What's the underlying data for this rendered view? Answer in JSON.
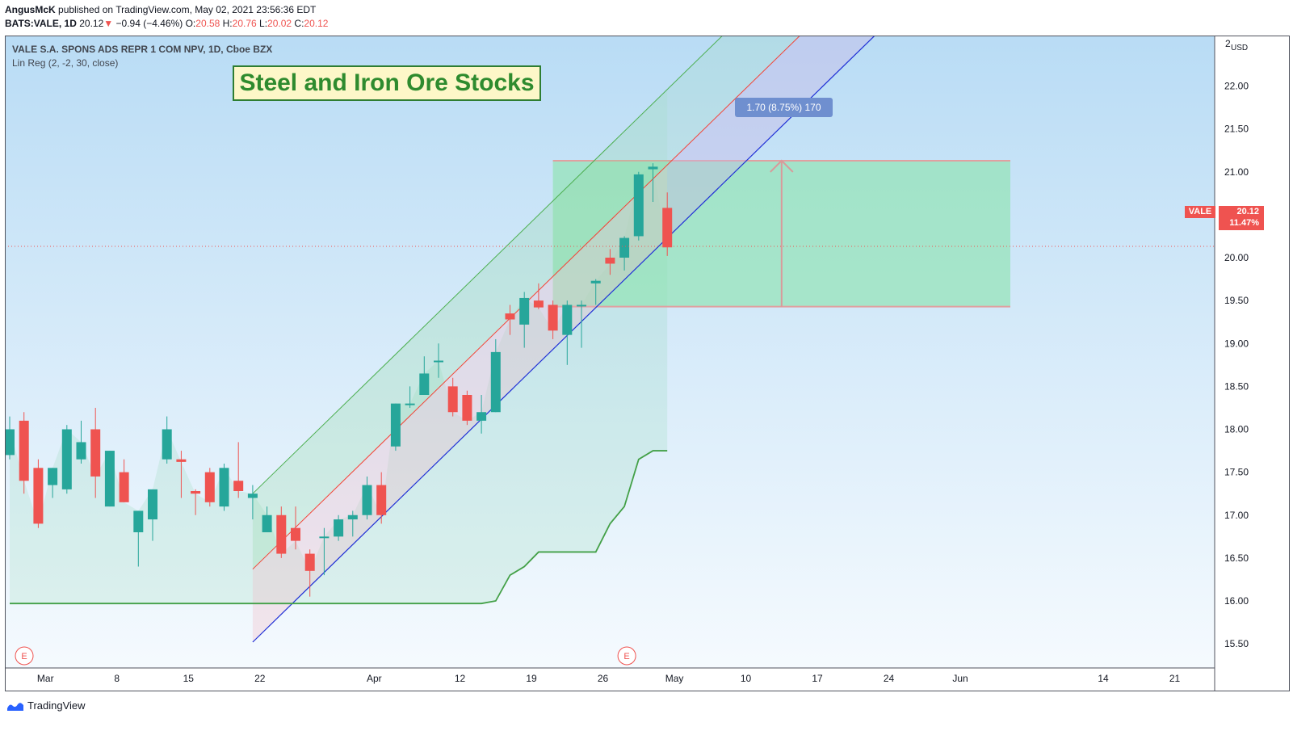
{
  "header": {
    "author": "AngusMcK",
    "published": "published on TradingView.com, May 02, 2021 23:56:36 EDT",
    "symbol": "BATS:VALE, 1D",
    "last": "20.12",
    "change_arrow": "▼",
    "change": "−0.94 (−4.46%)",
    "o_label": "O:",
    "o_value": "20.58",
    "h_label": "H:",
    "h_value": "20.76",
    "l_label": "L:",
    "l_value": "20.02",
    "c_label": "C:",
    "c_value": "20.12"
  },
  "legend": {
    "instrument": "VALE S.A. SPONS ADS REPR 1 COM NPV, 1D, Cboe BZX",
    "indicator": "Lin Reg (2, -2, 30, close)"
  },
  "annotation_title": "Steel and Iron Ore Stocks",
  "measure_label": "1.70 (8.75%) 170",
  "price_tag": {
    "ticker": "VALE",
    "price": "20.12",
    "percent": "11.47%"
  },
  "earnings_marker": "E",
  "footer": {
    "brand": "TradingView"
  },
  "colors": {
    "up": "#26a69a",
    "down": "#ef5350",
    "channel_upper": "#4caf50",
    "channel_mid": "#f44336",
    "channel_lower": "#1f2fd6",
    "stop_line": "#43a047",
    "target_zone": "#8fe3b0"
  },
  "chart_data": {
    "type": "candlestick",
    "currency": "USD",
    "ylim": [
      15.3,
      22.5
    ],
    "y_ticks": [
      "22.00",
      "21.50",
      "21.00",
      "20.50",
      "20.00",
      "19.50",
      "19.00",
      "18.50",
      "18.00",
      "17.50",
      "17.00",
      "16.50",
      "16.00",
      "15.50"
    ],
    "y_top_label": "2",
    "x_ticks": [
      "Mar",
      "8",
      "15",
      "22",
      "Apr",
      "12",
      "19",
      "26",
      "May",
      "10",
      "17",
      "24",
      "Jun",
      "14",
      "21"
    ],
    "candles": [
      {
        "x": 0,
        "o": 17.7,
        "h": 18.15,
        "l": 17.65,
        "c": 18.0
      },
      {
        "x": 1,
        "o": 18.1,
        "h": 18.2,
        "l": 17.25,
        "c": 17.4
      },
      {
        "x": 2,
        "o": 17.55,
        "h": 17.65,
        "l": 16.85,
        "c": 16.9
      },
      {
        "x": 3,
        "o": 17.35,
        "h": 17.55,
        "l": 17.2,
        "c": 17.55
      },
      {
        "x": 4,
        "o": 17.3,
        "h": 18.05,
        "l": 17.25,
        "c": 18.0
      },
      {
        "x": 5,
        "o": 17.65,
        "h": 18.1,
        "l": 17.6,
        "c": 17.85
      },
      {
        "x": 6,
        "o": 18.0,
        "h": 18.25,
        "l": 17.2,
        "c": 17.45
      },
      {
        "x": 7,
        "o": 17.1,
        "h": 17.75,
        "l": 17.1,
        "c": 17.75
      },
      {
        "x": 8,
        "o": 17.5,
        "h": 17.65,
        "l": 17.15,
        "c": 17.15
      },
      {
        "x": 9,
        "o": 16.8,
        "h": 17.05,
        "l": 16.4,
        "c": 17.05
      },
      {
        "x": 10,
        "o": 16.95,
        "h": 17.3,
        "l": 16.7,
        "c": 17.3
      },
      {
        "x": 11,
        "o": 17.65,
        "h": 18.15,
        "l": 17.6,
        "c": 18.0
      },
      {
        "x": 12,
        "o": 17.65,
        "h": 17.75,
        "l": 17.2,
        "c": 17.62
      },
      {
        "x": 13,
        "o": 17.28,
        "h": 17.3,
        "l": 17.0,
        "c": 17.25
      },
      {
        "x": 14,
        "o": 17.5,
        "h": 17.55,
        "l": 17.1,
        "c": 17.15
      },
      {
        "x": 15,
        "o": 17.1,
        "h": 17.6,
        "l": 17.05,
        "c": 17.55
      },
      {
        "x": 16,
        "o": 17.4,
        "h": 17.85,
        "l": 17.2,
        "c": 17.28
      },
      {
        "x": 17,
        "o": 17.2,
        "h": 17.35,
        "l": 16.95,
        "c": 17.25
      },
      {
        "x": 18,
        "o": 16.8,
        "h": 17.1,
        "l": 16.8,
        "c": 17.0
      },
      {
        "x": 19,
        "o": 17.0,
        "h": 17.1,
        "l": 16.5,
        "c": 16.55
      },
      {
        "x": 20,
        "o": 16.85,
        "h": 17.1,
        "l": 16.6,
        "c": 16.7
      },
      {
        "x": 21,
        "o": 16.55,
        "h": 16.6,
        "l": 16.05,
        "c": 16.35
      },
      {
        "x": 22,
        "o": 16.75,
        "h": 16.85,
        "l": 16.3,
        "c": 16.75
      },
      {
        "x": 23,
        "o": 16.75,
        "h": 17.0,
        "l": 16.7,
        "c": 16.95
      },
      {
        "x": 24,
        "o": 16.95,
        "h": 17.05,
        "l": 16.75,
        "c": 17.0
      },
      {
        "x": 25,
        "o": 17.0,
        "h": 17.45,
        "l": 16.95,
        "c": 17.35
      },
      {
        "x": 26,
        "o": 17.35,
        "h": 17.5,
        "l": 16.9,
        "c": 17.0
      },
      {
        "x": 27,
        "o": 17.8,
        "h": 18.3,
        "l": 17.75,
        "c": 18.3
      },
      {
        "x": 28,
        "o": 18.3,
        "h": 18.5,
        "l": 18.25,
        "c": 18.3
      },
      {
        "x": 29,
        "o": 18.4,
        "h": 18.85,
        "l": 18.4,
        "c": 18.65
      },
      {
        "x": 30,
        "o": 18.8,
        "h": 19.0,
        "l": 18.6,
        "c": 18.8
      },
      {
        "x": 31,
        "o": 18.5,
        "h": 18.6,
        "l": 18.15,
        "c": 18.2
      },
      {
        "x": 32,
        "o": 18.4,
        "h": 18.45,
        "l": 18.05,
        "c": 18.1
      },
      {
        "x": 33,
        "o": 18.1,
        "h": 18.4,
        "l": 17.95,
        "c": 18.2
      },
      {
        "x": 34,
        "o": 18.2,
        "h": 19.05,
        "l": 18.2,
        "c": 18.9
      },
      {
        "x": 35,
        "o": 19.35,
        "h": 19.45,
        "l": 19.1,
        "c": 19.28
      },
      {
        "x": 36,
        "o": 19.22,
        "h": 19.6,
        "l": 18.95,
        "c": 19.53
      },
      {
        "x": 37,
        "o": 19.5,
        "h": 19.7,
        "l": 19.4,
        "c": 19.42
      },
      {
        "x": 38,
        "o": 19.45,
        "h": 19.5,
        "l": 19.05,
        "c": 19.15
      },
      {
        "x": 39,
        "o": 19.1,
        "h": 19.5,
        "l": 18.75,
        "c": 19.45
      },
      {
        "x": 40,
        "o": 19.45,
        "h": 19.5,
        "l": 18.95,
        "c": 19.45
      },
      {
        "x": 41,
        "o": 19.7,
        "h": 19.75,
        "l": 19.45,
        "c": 19.73
      },
      {
        "x": 42,
        "o": 20.0,
        "h": 20.1,
        "l": 19.8,
        "c": 19.93
      },
      {
        "x": 43,
        "o": 20.0,
        "h": 20.25,
        "l": 19.85,
        "c": 20.23
      },
      {
        "x": 44,
        "o": 20.25,
        "h": 21.0,
        "l": 20.2,
        "c": 20.97
      },
      {
        "x": 45,
        "o": 21.03,
        "h": 21.1,
        "l": 20.65,
        "c": 21.06
      },
      {
        "x": 46,
        "o": 20.58,
        "h": 20.76,
        "l": 20.02,
        "c": 20.12
      }
    ],
    "lin_reg_channel": {
      "x_start": 17,
      "x_end": 46,
      "upper": [
        17.25,
        21.96
      ],
      "middle": [
        16.37,
        21.08
      ],
      "lower": [
        15.52,
        20.23
      ]
    },
    "stop_line": [
      {
        "x": 0,
        "y": 15.97
      },
      {
        "x": 33,
        "y": 15.97
      },
      {
        "x": 34,
        "y": 16.0
      },
      {
        "x": 35,
        "y": 16.3
      },
      {
        "x": 36,
        "y": 16.4
      },
      {
        "x": 37,
        "y": 16.57
      },
      {
        "x": 41,
        "y": 16.57
      },
      {
        "x": 42,
        "y": 16.9
      },
      {
        "x": 43,
        "y": 17.1
      },
      {
        "x": 44,
        "y": 17.65
      },
      {
        "x": 45,
        "y": 17.75
      },
      {
        "x": 46,
        "y": 17.75
      }
    ],
    "target_zone": {
      "x_start": 38,
      "x_end": 70,
      "y_low": 19.43,
      "y_high": 21.13
    },
    "measure": {
      "x": 54,
      "y_from": 19.43,
      "y_to": 21.13
    },
    "last_price": 20.12,
    "earnings_x": [
      1,
      43
    ]
  }
}
